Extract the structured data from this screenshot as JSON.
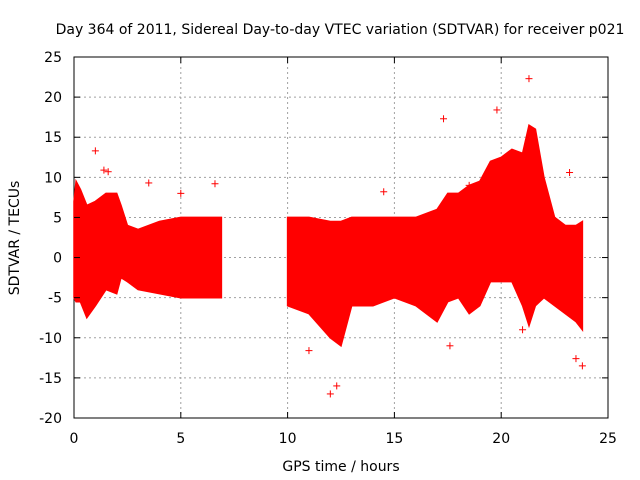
{
  "chart_data": {
    "type": "scatter",
    "title": "Day 364 of 2011, Sidereal Day-to-day VTEC variation (SDTVAR) for receiver p021",
    "xlabel": "GPS time / hours",
    "ylabel": "SDTVAR / TECUs",
    "xlim": [
      0,
      25
    ],
    "ylim": [
      -20,
      25
    ],
    "xticks": [
      0,
      5,
      10,
      15,
      20,
      25
    ],
    "yticks": [
      -20,
      -15,
      -10,
      -5,
      0,
      5,
      10,
      15,
      20,
      25
    ],
    "grid": true,
    "marker": "+",
    "color": "#ff0000",
    "series": [
      {
        "name": "SDTVAR",
        "envelope": {
          "x": [
            0.0,
            0.1,
            0.3,
            0.6,
            1.0,
            1.5,
            2.0,
            2.2,
            2.5,
            3.0,
            4.0,
            5.0,
            6.0,
            6.9,
            10.0,
            11.0,
            12.0,
            12.5,
            13.0,
            14.0,
            15.0,
            16.0,
            17.0,
            17.5,
            18.0,
            18.5,
            19.0,
            19.5,
            20.0,
            20.5,
            21.0,
            21.3,
            21.6,
            22.0,
            22.5,
            23.0,
            23.5,
            23.8
          ],
          "upper": [
            7.0,
            9.5,
            8.5,
            6.5,
            7.0,
            8.0,
            8.0,
            6.5,
            4.0,
            3.5,
            4.5,
            5.0,
            5.0,
            5.0,
            5.0,
            5.0,
            4.5,
            4.5,
            5.0,
            5.0,
            5.0,
            5.0,
            6.0,
            8.0,
            8.0,
            9.0,
            9.5,
            12.0,
            12.5,
            13.5,
            13.0,
            16.5,
            16.0,
            10.0,
            5.0,
            4.0,
            4.0,
            4.5
          ],
          "lower": [
            -5.0,
            -5.5,
            -5.5,
            -7.5,
            -6.0,
            -4.0,
            -4.5,
            -2.5,
            -3.0,
            -4.0,
            -4.5,
            -5.0,
            -5.0,
            -5.0,
            -6.0,
            -7.0,
            -10.0,
            -11.0,
            -6.0,
            -6.0,
            -5.0,
            -6.0,
            -8.0,
            -5.5,
            -5.0,
            -7.0,
            -6.0,
            -3.0,
            -3.0,
            -3.0,
            -6.0,
            -8.5,
            -6.0,
            -5.0,
            -6.0,
            -7.0,
            -8.0,
            -9.0
          ]
        },
        "outliers": [
          {
            "x": 1.0,
            "y": 13.3
          },
          {
            "x": 1.4,
            "y": 10.9
          },
          {
            "x": 1.6,
            "y": 10.7
          },
          {
            "x": 3.5,
            "y": 9.3
          },
          {
            "x": 5.0,
            "y": 8.0
          },
          {
            "x": 6.6,
            "y": 9.2
          },
          {
            "x": 11.0,
            "y": -11.6
          },
          {
            "x": 14.5,
            "y": 8.2
          },
          {
            "x": 17.3,
            "y": 17.3
          },
          {
            "x": 18.5,
            "y": 9.0
          },
          {
            "x": 19.8,
            "y": 18.4
          },
          {
            "x": 21.3,
            "y": 22.3
          },
          {
            "x": 23.2,
            "y": 10.6
          },
          {
            "x": 23.5,
            "y": -12.6
          },
          {
            "x": 12.0,
            "y": -17.0
          },
          {
            "x": 12.3,
            "y": -16.0
          },
          {
            "x": 17.6,
            "y": -11.0
          },
          {
            "x": 21.0,
            "y": -9.0
          },
          {
            "x": 23.8,
            "y": -13.5
          }
        ]
      }
    ]
  }
}
